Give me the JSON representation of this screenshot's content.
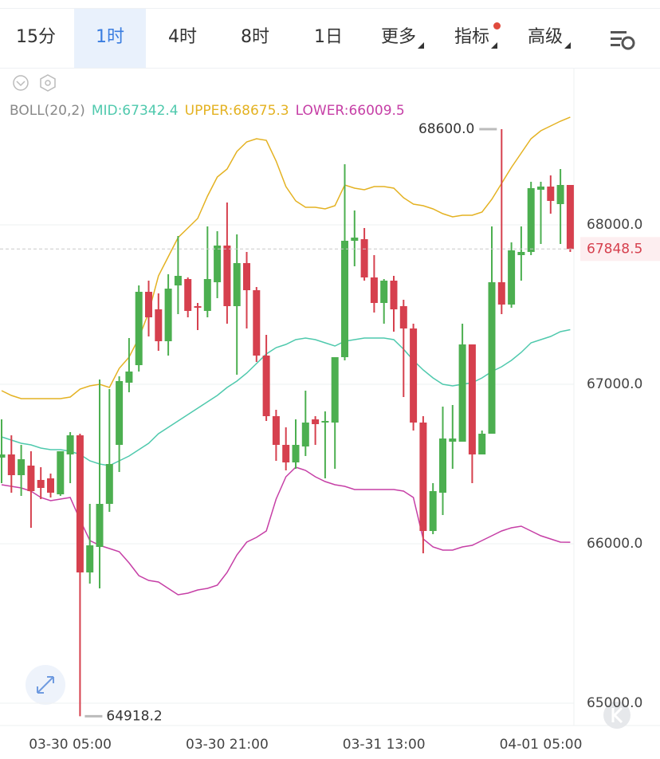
{
  "tabs": {
    "items": [
      "15分",
      "1时",
      "4时",
      "8时",
      "1日",
      "更多",
      "指标",
      "高级"
    ],
    "active": 1
  },
  "chart_data": {
    "type": "candlestick",
    "indicator": "BOLL(20,2)",
    "categories": [
      null,
      null,
      null,
      null,
      null,
      null,
      null,
      "03-30 05:00",
      null,
      null,
      null,
      null,
      null,
      null,
      null,
      null,
      null,
      null,
      null,
      null,
      null,
      null,
      null,
      "03-30 21:00",
      null,
      null,
      null,
      null,
      null,
      null,
      null,
      null,
      null,
      null,
      null,
      null,
      null,
      null,
      null,
      "03-31 13:00",
      null,
      null,
      null,
      null,
      null,
      null,
      null,
      null,
      null,
      null,
      null,
      null,
      null,
      null,
      null,
      "04-01 05:00",
      null,
      null,
      null
    ],
    "open": [
      66540,
      66560,
      66430,
      66490,
      66400,
      66410,
      66310,
      66560,
      66680,
      65820,
      65980,
      66250,
      66620,
      67010,
      67120,
      67580,
      67470,
      67270,
      67620,
      67660,
      67490,
      67460,
      67640,
      67870,
      67490,
      67760,
      67590,
      67180,
      66800,
      66620,
      66510,
      66610,
      66780,
      66760,
      66760,
      67170,
      67900,
      67910,
      67670,
      67510,
      67650,
      67490,
      67350,
      66760,
      66080,
      66320,
      66640,
      66640,
      67250,
      66560,
      66690,
      67640,
      67500,
      67810,
      67830,
      68220,
      68240,
      68130,
      68250
    ],
    "high": [
      66780,
      66680,
      66620,
      66580,
      66480,
      66440,
      66580,
      66700,
      66690,
      66250,
      67030,
      66970,
      67050,
      67290,
      67620,
      67650,
      67570,
      67690,
      67930,
      67670,
      67510,
      67990,
      67960,
      68140,
      67940,
      67830,
      67610,
      67310,
      66840,
      66730,
      66780,
      66960,
      66800,
      66830,
      67150,
      68380,
      68090,
      67980,
      67810,
      67660,
      67680,
      67530,
      67380,
      66800,
      66380,
      66860,
      66870,
      67380,
      67250,
      66710,
      67990,
      68600,
      67890,
      67990,
      68270,
      68270,
      68310,
      68350,
      68250
    ],
    "low": [
      66380,
      66320,
      66300,
      66100,
      66280,
      66290,
      66300,
      66380,
      64918.2,
      65750,
      65720,
      66200,
      66450,
      66950,
      67080,
      67300,
      67210,
      67180,
      67440,
      67420,
      67340,
      67420,
      67540,
      67380,
      67060,
      67350,
      67140,
      66770,
      66520,
      66460,
      66470,
      66550,
      66620,
      66410,
      66470,
      67150,
      67740,
      67650,
      67450,
      67380,
      67330,
      66920,
      66710,
      65940,
      66060,
      66180,
      66470,
      66640,
      66380,
      66560,
      66690,
      67440,
      67480,
      67650,
      67810,
      67880,
      68070,
      67880,
      67830
    ],
    "close": [
      66560,
      66430,
      66530,
      66330,
      66350,
      66320,
      66580,
      66680,
      65820,
      65990,
      66250,
      66500,
      67020,
      67080,
      67580,
      67420,
      67270,
      67600,
      67680,
      67460,
      67480,
      67660,
      67870,
      67490,
      67760,
      67590,
      67180,
      66800,
      66620,
      66510,
      66620,
      66760,
      66750,
      66770,
      67170,
      67900,
      67920,
      67670,
      67510,
      67650,
      67470,
      67350,
      66760,
      66080,
      66330,
      66660,
      66660,
      67250,
      66560,
      66690,
      67640,
      67500,
      67840,
      67830,
      68230,
      68240,
      68150,
      68250,
      67848.5
    ],
    "up_color": "#4caf50",
    "down_color": "#d6404e",
    "series": [
      {
        "name": "MID:67342.4",
        "color": "#4fc9ad",
        "values": [
          66670,
          66650,
          66630,
          66620,
          66600,
          66590,
          66590,
          66580,
          66560,
          66520,
          66500,
          66490,
          66520,
          66550,
          66590,
          66630,
          66690,
          66730,
          66770,
          66810,
          66850,
          66890,
          66930,
          66980,
          67020,
          67070,
          67130,
          67190,
          67230,
          67250,
          67280,
          67290,
          67280,
          67260,
          67240,
          67270,
          67280,
          67290,
          67290,
          67290,
          67280,
          67220,
          67150,
          67090,
          67040,
          67000,
          66990,
          67000,
          67010,
          67040,
          67080,
          67110,
          67150,
          67200,
          67260,
          67280,
          67300,
          67330,
          67342.4
        ]
      },
      {
        "name": "UPPER:68675.3",
        "color": "#e4b222",
        "values": [
          66960,
          66930,
          66910,
          66910,
          66910,
          66910,
          66910,
          66920,
          66970,
          66990,
          67000,
          66980,
          67100,
          67170,
          67290,
          67450,
          67680,
          67800,
          67920,
          67980,
          68040,
          68180,
          68300,
          68350,
          68460,
          68520,
          68540,
          68530,
          68400,
          68240,
          68150,
          68110,
          68110,
          68100,
          68120,
          68250,
          68230,
          68220,
          68240,
          68240,
          68230,
          68170,
          68130,
          68120,
          68100,
          68070,
          68050,
          68060,
          68060,
          68080,
          68160,
          68260,
          68360,
          68450,
          68540,
          68590,
          68620,
          68650,
          68675.3
        ]
      },
      {
        "name": "LOWER:66009.5",
        "color": "#c63fa6",
        "values": [
          66370,
          66360,
          66350,
          66330,
          66290,
          66270,
          66280,
          66290,
          66150,
          66020,
          65990,
          65970,
          65950,
          65880,
          65800,
          65770,
          65760,
          65720,
          65680,
          65690,
          65710,
          65720,
          65740,
          65820,
          65930,
          66010,
          66040,
          66080,
          66280,
          66420,
          66480,
          66460,
          66420,
          66390,
          66370,
          66360,
          66340,
          66340,
          66340,
          66340,
          66340,
          66330,
          66290,
          66030,
          65980,
          65960,
          65960,
          65980,
          65990,
          66020,
          66050,
          66080,
          66100,
          66110,
          66080,
          66050,
          66030,
          66010,
          66009.5
        ]
      }
    ],
    "ylim": [
      64860,
      68960
    ],
    "yticks": [
      {
        "value": 65000,
        "label": "65000.0"
      },
      {
        "value": 66000,
        "label": "66000.0"
      },
      {
        "value": 67000,
        "label": "67000.0"
      },
      {
        "value": 68000,
        "label": "68000.0"
      }
    ],
    "grid": true,
    "high_marker": {
      "index": 51,
      "value": 68600,
      "label": "68600.0"
    },
    "low_marker": {
      "index": 8,
      "value": 64918.2,
      "label": "64918.2"
    },
    "last_price": {
      "value": 67848.5,
      "label": "67848.5"
    }
  }
}
